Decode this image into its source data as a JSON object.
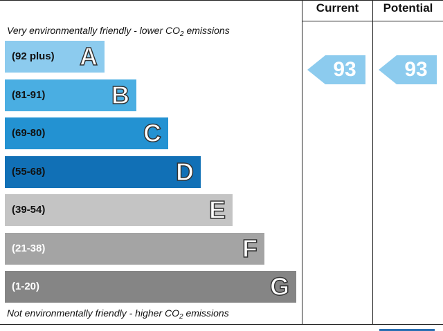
{
  "chart_data": {
    "type": "bar",
    "top_caption": "Very environmentally friendly - lower CO",
    "top_caption_tail": " emissions",
    "bottom_caption": "Not environmentally friendly - higher CO",
    "bottom_caption_tail": " emissions",
    "co2_subscript": "2",
    "columns": [
      "Current",
      "Potential"
    ],
    "bands": [
      {
        "range": "(92 plus)",
        "letter": "A",
        "color": "#8ccbee",
        "range_color": "#111111"
      },
      {
        "range": "(81-91)",
        "letter": "B",
        "color": "#4aaee2",
        "range_color": "#111111"
      },
      {
        "range": "(69-80)",
        "letter": "C",
        "color": "#2392d2",
        "range_color": "#111111"
      },
      {
        "range": "(55-68)",
        "letter": "D",
        "color": "#1170b6",
        "range_color": "#111111"
      },
      {
        "range": "(39-54)",
        "letter": "E",
        "color": "#c4c4c4",
        "range_color": "#111111"
      },
      {
        "range": "(21-38)",
        "letter": "F",
        "color": "#a4a4a4",
        "range_color": "#ffffff"
      },
      {
        "range": "(1-20)",
        "letter": "G",
        "color": "#858585",
        "range_color": "#ffffff"
      }
    ],
    "current": {
      "value": "93",
      "band": "A",
      "color": "#8ccbee"
    },
    "potential": {
      "value": "93",
      "band": "A",
      "color": "#8ccbee"
    }
  }
}
